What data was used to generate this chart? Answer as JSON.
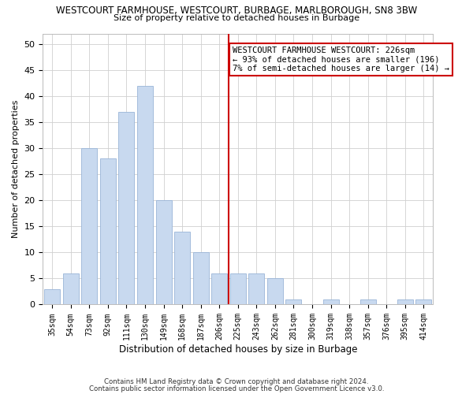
{
  "title": "WESTCOURT FARMHOUSE, WESTCOURT, BURBAGE, MARLBOROUGH, SN8 3BW",
  "subtitle": "Size of property relative to detached houses in Burbage",
  "xlabel": "Distribution of detached houses by size in Burbage",
  "ylabel": "Number of detached properties",
  "bar_labels": [
    "35sqm",
    "54sqm",
    "73sqm",
    "92sqm",
    "111sqm",
    "130sqm",
    "149sqm",
    "168sqm",
    "187sqm",
    "206sqm",
    "225sqm",
    "243sqm",
    "262sqm",
    "281sqm",
    "300sqm",
    "319sqm",
    "338sqm",
    "357sqm",
    "376sqm",
    "395sqm",
    "414sqm"
  ],
  "bar_values": [
    3,
    6,
    30,
    28,
    37,
    42,
    20,
    14,
    10,
    6,
    6,
    6,
    5,
    1,
    0,
    1,
    0,
    1,
    0,
    1,
    1
  ],
  "bar_color": "#c8d9ef",
  "bar_edge_color": "#9ab5d8",
  "vline_x_index": 10,
  "vline_color": "#cc0000",
  "ylim": [
    0,
    52
  ],
  "yticks": [
    0,
    5,
    10,
    15,
    20,
    25,
    30,
    35,
    40,
    45,
    50
  ],
  "annotation_title": "WESTCOURT FARMHOUSE WESTCOURT: 226sqm",
  "annotation_line1": "← 93% of detached houses are smaller (196)",
  "annotation_line2": "7% of semi-detached houses are larger (14) →",
  "annotation_box_edge": "#cc0000",
  "footer1": "Contains HM Land Registry data © Crown copyright and database right 2024.",
  "footer2": "Contains public sector information licensed under the Open Government Licence v3.0."
}
